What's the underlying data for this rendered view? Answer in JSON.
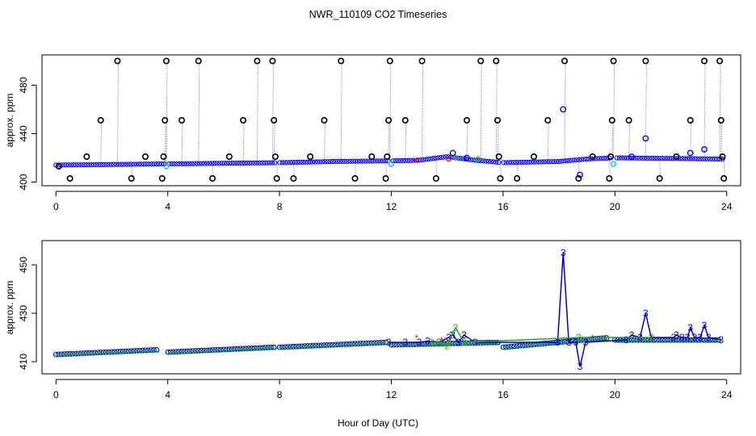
{
  "chart_data": [
    {
      "type": "scatter",
      "title": "NWR_110109  CO2 Timeseries",
      "xlabel": "",
      "ylabel": "approx. ppm",
      "xlim": [
        -0.5,
        24.5
      ],
      "ylim": [
        397,
        505
      ],
      "x_ticks": [
        "0",
        "4",
        "8",
        "12",
        "16",
        "20",
        "24"
      ],
      "x_tick_values": [
        0,
        4,
        8,
        12,
        16,
        20,
        24
      ],
      "y_ticks": [
        "400",
        "440",
        "480"
      ],
      "y_tick_values": [
        400,
        440,
        480
      ],
      "grid": false,
      "colors": {
        "black": "#000000",
        "blue": "#0000ff",
        "cyan": "#00ccee",
        "green": "#22aa22",
        "red": "#dd0033",
        "spike_line": "#aaaaaa"
      },
      "black_points": [
        [
          0.1,
          413
        ],
        [
          0.5,
          403
        ],
        [
          1.1,
          421
        ],
        [
          1.6,
          451
        ],
        [
          2.2,
          500
        ],
        [
          2.7,
          403
        ],
        [
          3.2,
          421
        ],
        [
          3.8,
          403
        ],
        [
          3.85,
          421
        ],
        [
          3.9,
          451
        ],
        [
          3.95,
          500
        ],
        [
          4.5,
          451
        ],
        [
          5.1,
          500
        ],
        [
          5.6,
          403
        ],
        [
          6.2,
          421
        ],
        [
          6.7,
          451
        ],
        [
          7.2,
          500
        ],
        [
          7.75,
          500
        ],
        [
          7.8,
          451
        ],
        [
          7.85,
          421
        ],
        [
          7.9,
          403
        ],
        [
          8.5,
          403
        ],
        [
          9.1,
          421
        ],
        [
          9.6,
          451
        ],
        [
          10.2,
          500
        ],
        [
          10.7,
          403
        ],
        [
          11.3,
          421
        ],
        [
          11.8,
          403
        ],
        [
          11.85,
          421
        ],
        [
          11.9,
          451
        ],
        [
          11.95,
          500
        ],
        [
          12.5,
          451
        ],
        [
          13.1,
          500
        ],
        [
          13.6,
          403
        ],
        [
          14.7,
          451
        ],
        [
          15.2,
          500
        ],
        [
          15.75,
          500
        ],
        [
          15.8,
          451
        ],
        [
          15.85,
          421
        ],
        [
          15.9,
          403
        ],
        [
          16.5,
          403
        ],
        [
          17.1,
          421
        ],
        [
          17.6,
          451
        ],
        [
          18.2,
          500
        ],
        [
          18.7,
          403
        ],
        [
          19.2,
          421
        ],
        [
          19.8,
          403
        ],
        [
          19.85,
          421
        ],
        [
          19.9,
          451
        ],
        [
          19.95,
          500
        ],
        [
          20.5,
          451
        ],
        [
          21.1,
          500
        ],
        [
          21.6,
          403
        ],
        [
          22.2,
          421
        ],
        [
          22.7,
          451
        ],
        [
          23.2,
          500
        ],
        [
          23.75,
          500
        ],
        [
          23.8,
          451
        ],
        [
          23.85,
          421
        ],
        [
          23.9,
          403
        ]
      ],
      "spikes": [
        [
          1.6,
          451
        ],
        [
          2.2,
          500
        ],
        [
          2.7,
          403
        ],
        [
          3.85,
          421
        ],
        [
          3.9,
          451
        ],
        [
          3.95,
          500
        ],
        [
          4.5,
          451
        ],
        [
          5.1,
          500
        ],
        [
          5.6,
          403
        ],
        [
          6.7,
          451
        ],
        [
          7.2,
          500
        ],
        [
          7.75,
          500
        ],
        [
          7.8,
          451
        ],
        [
          7.9,
          403
        ],
        [
          8.5,
          403
        ],
        [
          9.6,
          451
        ],
        [
          10.2,
          500
        ],
        [
          10.7,
          403
        ],
        [
          11.8,
          403
        ],
        [
          11.9,
          451
        ],
        [
          11.95,
          500
        ],
        [
          12.5,
          451
        ],
        [
          13.1,
          500
        ],
        [
          13.6,
          403
        ],
        [
          14.7,
          451
        ],
        [
          15.2,
          500
        ],
        [
          15.75,
          500
        ],
        [
          15.8,
          451
        ],
        [
          15.9,
          403
        ],
        [
          16.5,
          403
        ],
        [
          17.6,
          451
        ],
        [
          18.2,
          500
        ],
        [
          18.7,
          403
        ],
        [
          19.8,
          403
        ],
        [
          19.9,
          451
        ],
        [
          19.95,
          500
        ],
        [
          20.5,
          451
        ],
        [
          21.1,
          500
        ],
        [
          21.6,
          403
        ],
        [
          22.7,
          451
        ],
        [
          23.2,
          500
        ],
        [
          23.75,
          500
        ],
        [
          23.8,
          451
        ],
        [
          23.9,
          403
        ]
      ],
      "blue_outliers": [
        [
          14.2,
          424
        ],
        [
          14.7,
          420
        ],
        [
          18.15,
          460
        ],
        [
          18.75,
          406
        ],
        [
          20.6,
          421
        ],
        [
          21.1,
          436
        ],
        [
          22.7,
          424
        ],
        [
          23.2,
          427
        ]
      ],
      "cyan_points": [
        [
          3.95,
          413
        ],
        [
          12.0,
          415
        ],
        [
          19.95,
          415
        ]
      ],
      "red_points": [
        [
          12.9,
          418
        ],
        [
          14.05,
          419
        ]
      ],
      "green_points": [
        [
          14.3,
          420
        ],
        [
          15.1,
          419
        ]
      ],
      "baseline": [
        [
          0,
          414
        ],
        [
          2,
          414.5
        ],
        [
          4,
          415
        ],
        [
          6,
          415.5
        ],
        [
          8,
          416
        ],
        [
          10,
          417
        ],
        [
          12,
          417.5
        ],
        [
          13,
          418
        ],
        [
          14,
          421
        ],
        [
          15,
          418
        ],
        [
          16,
          416
        ],
        [
          18,
          417
        ],
        [
          19,
          419
        ],
        [
          20,
          420
        ],
        [
          22,
          419.5
        ],
        [
          23.8,
          419
        ]
      ],
      "baseline_gaps": [
        [
          3.9,
          4.0
        ],
        [
          7.85,
          7.95
        ],
        [
          11.9,
          12.0
        ],
        [
          15.85,
          16.0
        ],
        [
          19.85,
          20.0
        ]
      ]
    },
    {
      "type": "line",
      "xlabel": "Hour of Day (UTC)",
      "ylabel": "approx. ppm",
      "xlim": [
        -0.5,
        24.5
      ],
      "ylim": [
        405,
        460
      ],
      "x_ticks": [
        "0",
        "4",
        "8",
        "12",
        "16",
        "20",
        "24"
      ],
      "x_tick_values": [
        0,
        4,
        8,
        12,
        16,
        20,
        24
      ],
      "y_ticks": [
        "410",
        "430",
        "450"
      ],
      "y_tick_values": [
        410,
        430,
        450
      ],
      "grid": false,
      "series": [
        {
          "name": "",
          "label_char": "3",
          "color": "#0000cc",
          "points": [
            [
              11.9,
              418
            ],
            [
              12.5,
              418
            ],
            [
              13.0,
              418
            ],
            [
              13.3,
              418.5
            ],
            [
              13.7,
              418
            ],
            [
              14.05,
              420
            ],
            [
              14.2,
              421
            ],
            [
              14.4,
              418
            ],
            [
              14.6,
              421
            ],
            [
              15.0,
              418
            ],
            [
              17.95,
              418
            ],
            [
              18.15,
              455
            ],
            [
              18.35,
              418
            ],
            [
              18.6,
              418
            ],
            [
              18.75,
              408
            ],
            [
              18.95,
              418
            ],
            [
              20.4,
              419
            ],
            [
              20.6,
              421
            ],
            [
              20.9,
              420
            ],
            [
              21.1,
              430
            ],
            [
              21.3,
              420
            ],
            [
              22.1,
              420
            ],
            [
              22.2,
              421
            ],
            [
              22.4,
              420
            ],
            [
              22.6,
              420
            ],
            [
              22.7,
              424
            ],
            [
              22.85,
              420
            ],
            [
              23.05,
              420
            ],
            [
              23.2,
              425
            ],
            [
              23.35,
              420
            ],
            [
              23.8,
              419
            ]
          ]
        },
        {
          "name": "",
          "label_char": "2",
          "color": "#22aa22",
          "points": [
            [
              13.4,
              418
            ],
            [
              13.7,
              418
            ],
            [
              14.0,
              416.5
            ],
            [
              14.15,
              421
            ],
            [
              14.3,
              424
            ],
            [
              14.6,
              418
            ],
            [
              18.7,
              420
            ],
            [
              21.3,
              420
            ]
          ]
        }
      ],
      "red_stars": [
        [
          12.9,
          420
        ],
        [
          13.5,
          418
        ],
        [
          13.8,
          419
        ],
        [
          14.1,
          419
        ],
        [
          19.2,
          420
        ]
      ],
      "baseline_runs": [
        [
          0.0,
          3.7,
          413,
          415
        ],
        [
          4.0,
          7.8,
          414,
          416
        ],
        [
          8.0,
          11.8,
          416,
          418
        ],
        [
          12.0,
          15.8,
          417,
          418
        ],
        [
          16.0,
          19.8,
          416,
          420
        ],
        [
          20.0,
          23.8,
          419,
          419
        ]
      ]
    }
  ]
}
